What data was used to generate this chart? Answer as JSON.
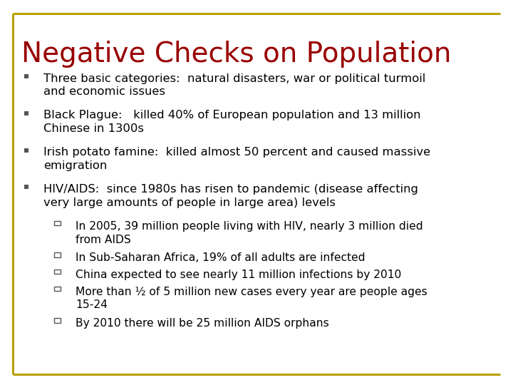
{
  "title": "Negative Checks on Population",
  "title_color": "#990000",
  "body_color": "#000000",
  "bg_color": "#FFFFFF",
  "border_color": "#B8A000",
  "title_fontsize": 28,
  "body_fontsize": 11.8,
  "sub_fontsize": 11.2,
  "bullet_items": [
    {
      "text": "Three basic categories:  natural disasters, war or political turmoil\nand economic issues",
      "lines": 2
    },
    {
      "text": "Black Plague:   killed 40% of European population and 13 million\nChinese in 1300s",
      "lines": 2
    },
    {
      "text": "Irish potato famine:  killed almost 50 percent and caused massive\nemigration",
      "lines": 2
    },
    {
      "text": "HIV/AIDS:  since 1980s has risen to pandemic (disease affecting\nvery large amounts of people in large area) levels",
      "lines": 2
    }
  ],
  "sub_items": [
    {
      "text": "In 2005, 39 million people living with HIV, nearly 3 million died\nfrom AIDS",
      "lines": 2
    },
    {
      "text": "In Sub-Saharan Africa, 19% of all adults are infected",
      "lines": 1
    },
    {
      "text": "China expected to see nearly 11 million infections by 2010",
      "lines": 1
    },
    {
      "text": "More than ½ of 5 million new cases every year are people ages\n15-24",
      "lines": 2
    },
    {
      "text": "By 2010 there will be 25 million AIDS orphans",
      "lines": 1
    }
  ],
  "font_family": "DejaVu Sans"
}
